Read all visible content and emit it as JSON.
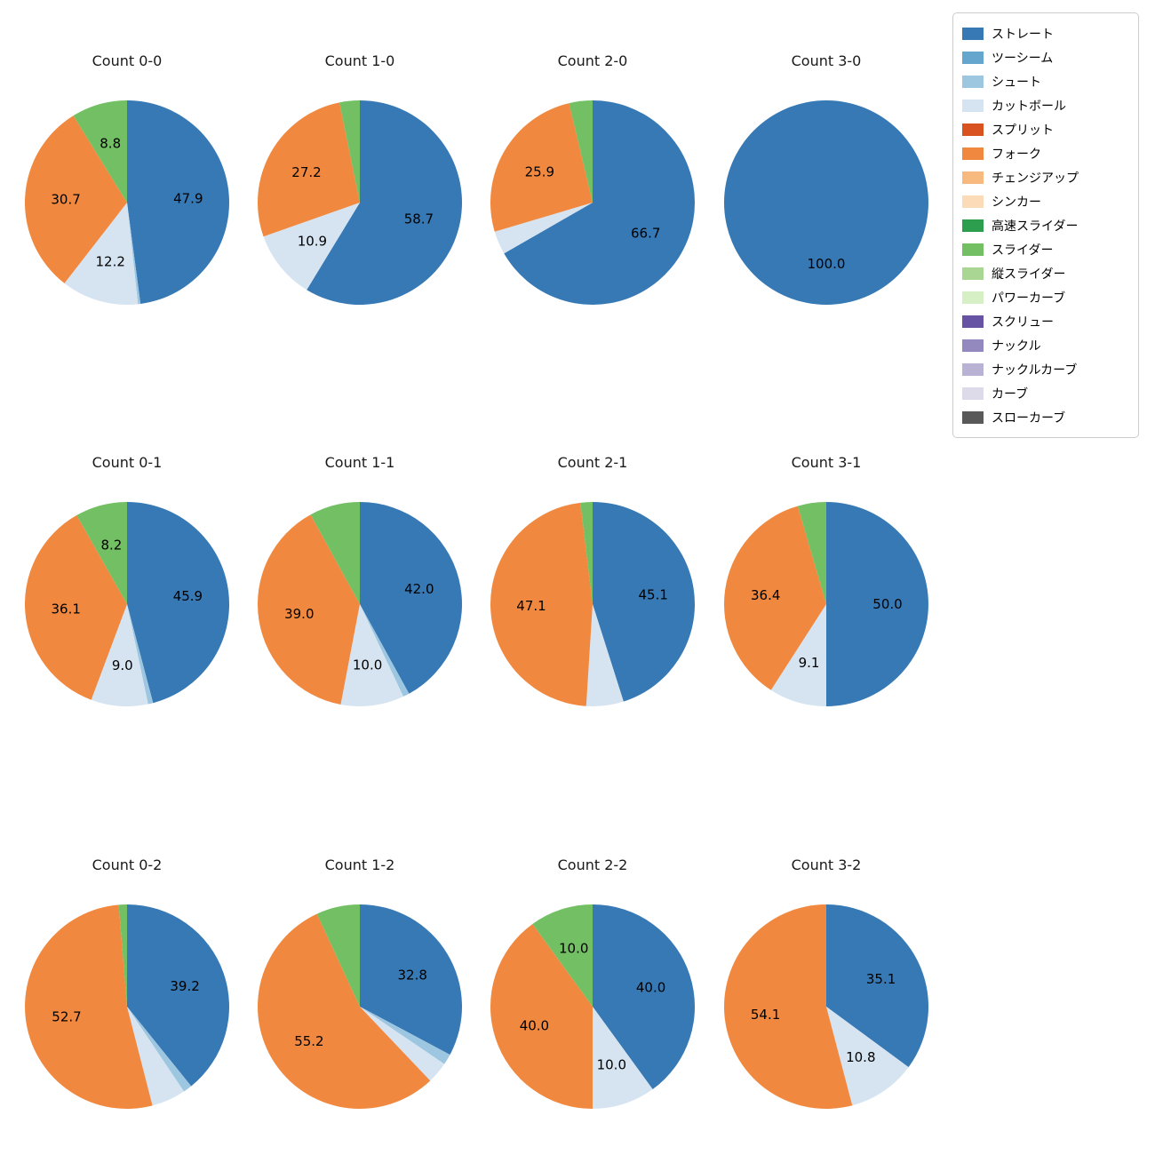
{
  "figure": {
    "background": "#ffffff"
  },
  "legend": {
    "entries": [
      {
        "label": "ストレート",
        "color": "#3679b5"
      },
      {
        "label": "ツーシーム",
        "color": "#64a6cd"
      },
      {
        "label": "シュート",
        "color": "#9dc6e0"
      },
      {
        "label": "カットボール",
        "color": "#d6e4f2"
      },
      {
        "label": "スプリット",
        "color": "#d8531f"
      },
      {
        "label": "フォーク",
        "color": "#f0893f"
      },
      {
        "label": "チェンジアップ",
        "color": "#f8b97e"
      },
      {
        "label": "シンカー",
        "color": "#fcdcb8"
      },
      {
        "label": "高速スライダー",
        "color": "#2c9e4e"
      },
      {
        "label": "スライダー",
        "color": "#73bf63"
      },
      {
        "label": "縦スライダー",
        "color": "#a9d793"
      },
      {
        "label": "パワーカーブ",
        "color": "#d7efc4"
      },
      {
        "label": "スクリュー",
        "color": "#6753a3"
      },
      {
        "label": "ナックル",
        "color": "#9489bf"
      },
      {
        "label": "ナックルカーブ",
        "color": "#b9b2d4"
      },
      {
        "label": "カーブ",
        "color": "#dddbea"
      },
      {
        "label": "スローカーブ",
        "color": "#595959"
      }
    ]
  },
  "chart_data": [
    {
      "type": "pie",
      "title": "Count 0-0",
      "start_angle_deg": 0,
      "direction": "clockwise",
      "slices": [
        {
          "pitch": "ストレート",
          "value": 47.9,
          "label": "47.9"
        },
        {
          "pitch": "シュート",
          "value": 0.4,
          "label": ""
        },
        {
          "pitch": "カットボール",
          "value": 12.2,
          "label": "12.2"
        },
        {
          "pitch": "フォーク",
          "value": 30.7,
          "label": "30.7"
        },
        {
          "pitch": "スライダー",
          "value": 8.8,
          "label": "8.8"
        }
      ]
    },
    {
      "type": "pie",
      "title": "Count 1-0",
      "start_angle_deg": 0,
      "direction": "clockwise",
      "slices": [
        {
          "pitch": "ストレート",
          "value": 58.7,
          "label": "58.7"
        },
        {
          "pitch": "カットボール",
          "value": 10.9,
          "label": "10.9"
        },
        {
          "pitch": "フォーク",
          "value": 27.2,
          "label": "27.2"
        },
        {
          "pitch": "スライダー",
          "value": 3.2,
          "label": ""
        }
      ]
    },
    {
      "type": "pie",
      "title": "Count 2-0",
      "start_angle_deg": 0,
      "direction": "clockwise",
      "slices": [
        {
          "pitch": "ストレート",
          "value": 66.7,
          "label": "66.7"
        },
        {
          "pitch": "カットボール",
          "value": 3.7,
          "label": ""
        },
        {
          "pitch": "フォーク",
          "value": 25.9,
          "label": "25.9"
        },
        {
          "pitch": "スライダー",
          "value": 3.7,
          "label": ""
        }
      ]
    },
    {
      "type": "pie",
      "title": "Count 3-0",
      "start_angle_deg": 0,
      "direction": "clockwise",
      "slices": [
        {
          "pitch": "ストレート",
          "value": 100.0,
          "label": "100.0"
        }
      ]
    },
    {
      "type": "pie",
      "title": "Count 0-1",
      "start_angle_deg": 0,
      "direction": "clockwise",
      "slices": [
        {
          "pitch": "ストレート",
          "value": 45.9,
          "label": "45.9"
        },
        {
          "pitch": "シュート",
          "value": 0.8,
          "label": ""
        },
        {
          "pitch": "カットボール",
          "value": 9.0,
          "label": "9.0"
        },
        {
          "pitch": "フォーク",
          "value": 36.1,
          "label": "36.1"
        },
        {
          "pitch": "スライダー",
          "value": 8.2,
          "label": "8.2"
        }
      ]
    },
    {
      "type": "pie",
      "title": "Count 1-1",
      "start_angle_deg": 0,
      "direction": "clockwise",
      "slices": [
        {
          "pitch": "ストレート",
          "value": 42.0,
          "label": "42.0"
        },
        {
          "pitch": "シュート",
          "value": 1.0,
          "label": ""
        },
        {
          "pitch": "カットボール",
          "value": 10.0,
          "label": "10.0"
        },
        {
          "pitch": "フォーク",
          "value": 39.0,
          "label": "39.0"
        },
        {
          "pitch": "スライダー",
          "value": 8.0,
          "label": ""
        }
      ]
    },
    {
      "type": "pie",
      "title": "Count 2-1",
      "start_angle_deg": 0,
      "direction": "clockwise",
      "slices": [
        {
          "pitch": "ストレート",
          "value": 45.1,
          "label": "45.1"
        },
        {
          "pitch": "カットボール",
          "value": 5.9,
          "label": ""
        },
        {
          "pitch": "フォーク",
          "value": 47.1,
          "label": "47.1"
        },
        {
          "pitch": "スライダー",
          "value": 1.9,
          "label": ""
        }
      ]
    },
    {
      "type": "pie",
      "title": "Count 3-1",
      "start_angle_deg": 0,
      "direction": "clockwise",
      "slices": [
        {
          "pitch": "ストレート",
          "value": 50.0,
          "label": "50.0"
        },
        {
          "pitch": "カットボール",
          "value": 9.1,
          "label": "9.1"
        },
        {
          "pitch": "フォーク",
          "value": 36.4,
          "label": "36.4"
        },
        {
          "pitch": "スライダー",
          "value": 4.5,
          "label": ""
        }
      ]
    },
    {
      "type": "pie",
      "title": "Count 0-2",
      "start_angle_deg": 0,
      "direction": "clockwise",
      "slices": [
        {
          "pitch": "ストレート",
          "value": 39.2,
          "label": "39.2"
        },
        {
          "pitch": "シュート",
          "value": 1.4,
          "label": ""
        },
        {
          "pitch": "カットボール",
          "value": 5.4,
          "label": ""
        },
        {
          "pitch": "フォーク",
          "value": 52.7,
          "label": "52.7"
        },
        {
          "pitch": "スライダー",
          "value": 1.3,
          "label": ""
        }
      ]
    },
    {
      "type": "pie",
      "title": "Count 1-2",
      "start_angle_deg": 0,
      "direction": "clockwise",
      "slices": [
        {
          "pitch": "ストレート",
          "value": 32.8,
          "label": "32.8"
        },
        {
          "pitch": "シュート",
          "value": 1.7,
          "label": ""
        },
        {
          "pitch": "カットボール",
          "value": 3.4,
          "label": ""
        },
        {
          "pitch": "フォーク",
          "value": 55.2,
          "label": "55.2"
        },
        {
          "pitch": "スライダー",
          "value": 6.9,
          "label": ""
        }
      ]
    },
    {
      "type": "pie",
      "title": "Count 2-2",
      "start_angle_deg": 0,
      "direction": "clockwise",
      "slices": [
        {
          "pitch": "ストレート",
          "value": 40.0,
          "label": "40.0"
        },
        {
          "pitch": "カットボール",
          "value": 10.0,
          "label": "10.0"
        },
        {
          "pitch": "フォーク",
          "value": 40.0,
          "label": "40.0"
        },
        {
          "pitch": "スライダー",
          "value": 10.0,
          "label": "10.0"
        }
      ]
    },
    {
      "type": "pie",
      "title": "Count 3-2",
      "start_angle_deg": 0,
      "direction": "clockwise",
      "slices": [
        {
          "pitch": "ストレート",
          "value": 35.1,
          "label": "35.1"
        },
        {
          "pitch": "カットボール",
          "value": 10.8,
          "label": "10.8"
        },
        {
          "pitch": "フォーク",
          "value": 54.1,
          "label": "54.1"
        }
      ]
    }
  ]
}
